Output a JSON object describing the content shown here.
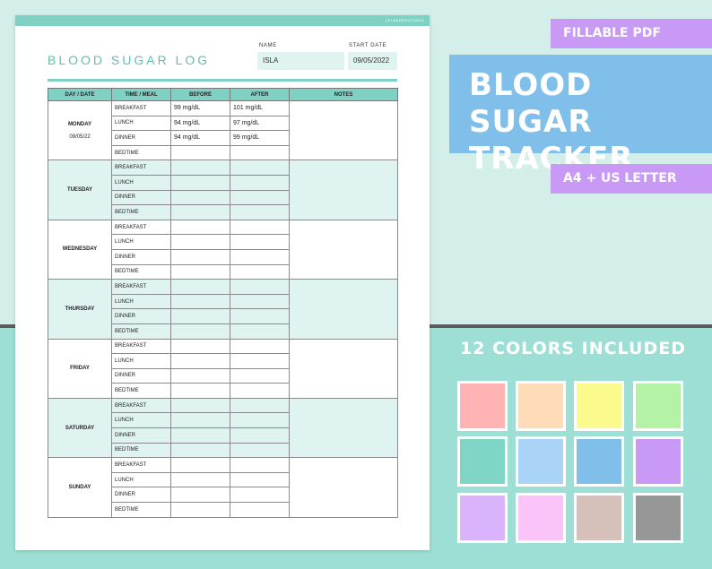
{
  "sheet": {
    "brand": "LPLANNERSTUDIO",
    "title": "BLOOD SUGAR LOG",
    "name_label": "NAME",
    "name_value": "ISLA",
    "start_date_label": "START DATE",
    "start_date_value": "09/05/2022"
  },
  "table": {
    "headers": [
      "DAY / DATE",
      "TIME / MEAL",
      "BEFORE",
      "AFTER",
      "NOTES"
    ],
    "days": [
      {
        "day": "MONDAY",
        "date": "09/05/22",
        "rows": [
          {
            "meal": "BREAKFAST",
            "before": "99 mg/dL",
            "after": "101 mg/dL"
          },
          {
            "meal": "LUNCH",
            "before": "94 mg/dL",
            "after": "97 mg/dL"
          },
          {
            "meal": "DINNER",
            "before": "94 mg/dL",
            "after": "99 mg/dL"
          },
          {
            "meal": "BEDTIME",
            "before": "",
            "after": ""
          }
        ]
      },
      {
        "day": "TUESDAY",
        "date": "",
        "rows": [
          {
            "meal": "BREAKFAST",
            "before": "",
            "after": ""
          },
          {
            "meal": "LUNCH",
            "before": "",
            "after": ""
          },
          {
            "meal": "DINNER",
            "before": "",
            "after": ""
          },
          {
            "meal": "BEDTIME",
            "before": "",
            "after": ""
          }
        ]
      },
      {
        "day": "WEDNESDAY",
        "date": "",
        "rows": [
          {
            "meal": "BREAKFAST",
            "before": "",
            "after": ""
          },
          {
            "meal": "LUNCH",
            "before": "",
            "after": ""
          },
          {
            "meal": "DINNER",
            "before": "",
            "after": ""
          },
          {
            "meal": "BEDTIME",
            "before": "",
            "after": ""
          }
        ]
      },
      {
        "day": "THURSDAY",
        "date": "",
        "rows": [
          {
            "meal": "BREAKFAST",
            "before": "",
            "after": ""
          },
          {
            "meal": "LUNCH",
            "before": "",
            "after": ""
          },
          {
            "meal": "DINNER",
            "before": "",
            "after": ""
          },
          {
            "meal": "BEDTIME",
            "before": "",
            "after": ""
          }
        ]
      },
      {
        "day": "FRIDAY",
        "date": "",
        "rows": [
          {
            "meal": "BREAKFAST",
            "before": "",
            "after": ""
          },
          {
            "meal": "LUNCH",
            "before": "",
            "after": ""
          },
          {
            "meal": "DINNER",
            "before": "",
            "after": ""
          },
          {
            "meal": "BEDTIME",
            "before": "",
            "after": ""
          }
        ]
      },
      {
        "day": "SATURDAY",
        "date": "",
        "rows": [
          {
            "meal": "BREAKFAST",
            "before": "",
            "after": ""
          },
          {
            "meal": "LUNCH",
            "before": "",
            "after": ""
          },
          {
            "meal": "DINNER",
            "before": "",
            "after": ""
          },
          {
            "meal": "BEDTIME",
            "before": "",
            "after": ""
          }
        ]
      },
      {
        "day": "SUNDAY",
        "date": "",
        "rows": [
          {
            "meal": "BREAKFAST",
            "before": "",
            "after": ""
          },
          {
            "meal": "LUNCH",
            "before": "",
            "after": ""
          },
          {
            "meal": "DINNER",
            "before": "",
            "after": ""
          },
          {
            "meal": "BEDTIME",
            "before": "",
            "after": ""
          }
        ]
      }
    ]
  },
  "promo": {
    "fillable": "FILLABLE PDF",
    "title_line1": "BLOOD SUGAR",
    "title_line2": "TRACKER",
    "sizes": "A4 + US LETTER",
    "colors_heading": "12 COLORS INCLUDED"
  },
  "colors": {
    "accent": "#7fd1c4",
    "shade": "#dff3f0",
    "title_text": "#5ec0b0",
    "tag_purple": "#c89af5",
    "tag_blue": "#7fbfe9",
    "swatches": [
      "#ffb3b3",
      "#ffdcb8",
      "#fbfa8c",
      "#b4f2a6",
      "#7fd6c6",
      "#a9d3f7",
      "#7fbfe9",
      "#c89af5",
      "#d9b3fb",
      "#fbc4f8",
      "#d6c0ba",
      "#979797"
    ]
  }
}
